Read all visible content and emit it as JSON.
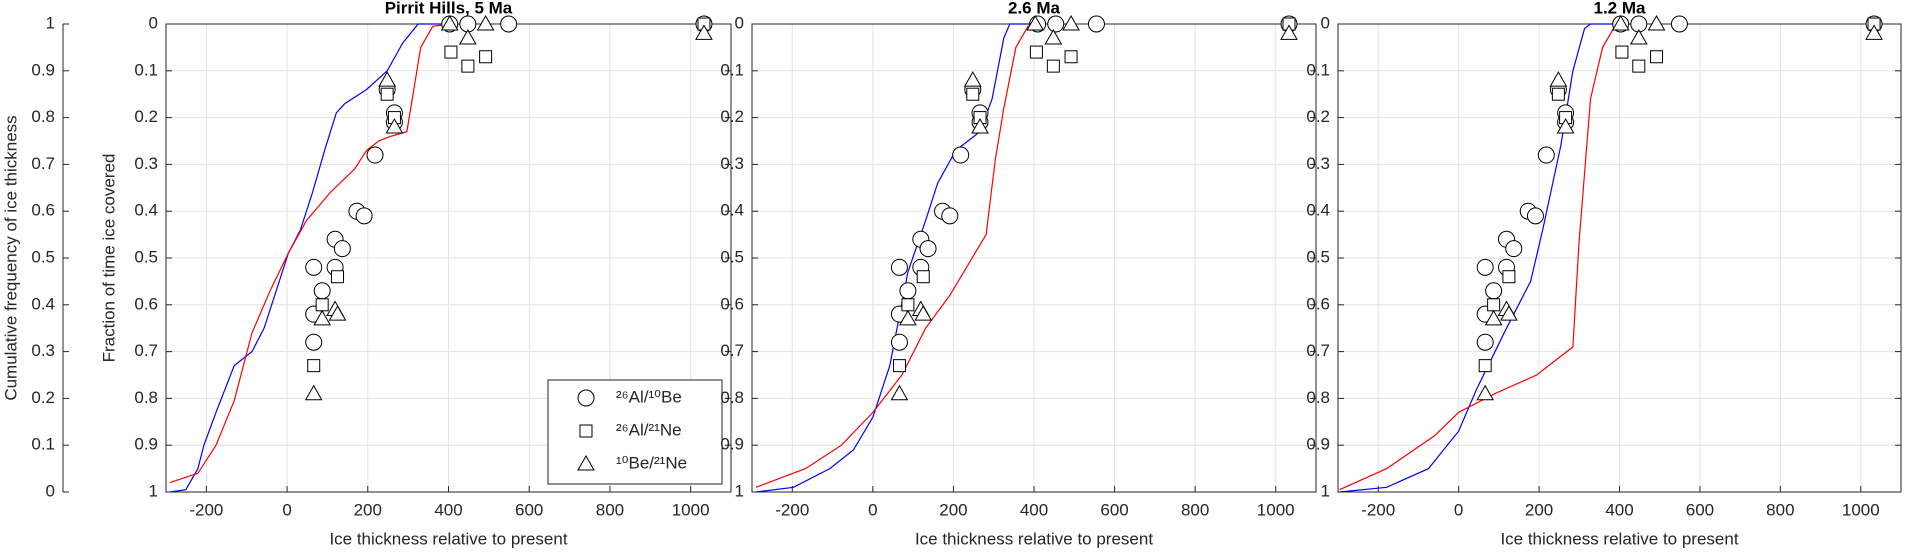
{
  "chart_data": [
    {
      "type": "scatter",
      "title": "Pirrit Hills, 5 Ma",
      "xlabel": "Ice thickness relative to present",
      "ylabel": "Fraction of time ice covered",
      "y2label": "Cumulative frequency of ice thickness",
      "xlim": [
        -300,
        1100
      ],
      "xticks": [
        -200,
        0,
        200,
        400,
        600,
        800,
        1000
      ],
      "ylim": [
        0,
        1
      ],
      "yticks": [
        0,
        0.1,
        0.2,
        0.3,
        0.4,
        0.5,
        0.6,
        0.7,
        0.8,
        0.9,
        1
      ],
      "y_reversed": true,
      "y2lim": [
        0,
        1
      ],
      "y2ticks": [
        0,
        0.1,
        0.2,
        0.3,
        0.4,
        0.5,
        0.6,
        0.7,
        0.8,
        0.9,
        1
      ],
      "grid": true,
      "legend": "lower right",
      "series": [
        {
          "name": "²⁶Al/¹⁰Be",
          "marker": "circle",
          "color": "#000000",
          "x": [
            66,
            66,
            66,
            87,
            119,
            119,
            137,
            173,
            191,
            218,
            248,
            266,
            266,
            403,
            448,
            549,
            1033
          ],
          "values": [
            0.52,
            0.62,
            0.68,
            0.57,
            0.52,
            0.46,
            0.48,
            0.4,
            0.41,
            0.28,
            0.14,
            0.19,
            0.21,
            0,
            0,
            0,
            0
          ]
        },
        {
          "name": "²⁶Al/²¹Ne",
          "marker": "square",
          "color": "#000000",
          "x": [
            66,
            87,
            125,
            248,
            266,
            406,
            448,
            492,
            1033
          ],
          "values": [
            0.73,
            0.6,
            0.54,
            0.15,
            0.2,
            0.06,
            0.09,
            0.07,
            0
          ]
        },
        {
          "name": "¹⁰Be/²¹Ne",
          "marker": "triangle",
          "color": "#000000",
          "x": [
            66,
            87,
            119,
            125,
            248,
            266,
            403,
            448,
            492,
            1033
          ],
          "values": [
            0.79,
            0.63,
            0.61,
            0.62,
            0.12,
            0.22,
            0,
            0.03,
            0,
            0.02
          ]
        }
      ],
      "lines": [
        {
          "color": "#0000ff",
          "axis": "y2",
          "x": [
            -290,
            -251,
            -221,
            -206,
            -176,
            -131,
            -87,
            -57,
            -27,
            3,
            33,
            63,
            93,
            122,
            143,
            197,
            248,
            287,
            325,
            403
          ],
          "values": [
            0,
            0.005,
            0.05,
            0.1,
            0.17,
            0.27,
            0.3,
            0.35,
            0.43,
            0.51,
            0.56,
            0.64,
            0.73,
            0.81,
            0.83,
            0.86,
            0.9,
            0.96,
            1,
            1
          ]
        },
        {
          "color": "#ff0000",
          "axis": "y2",
          "x": [
            -290,
            -221,
            -176,
            -131,
            -87,
            -42,
            3,
            48,
            107,
            167,
            197,
            227,
            257,
            297,
            331,
            361,
            403
          ],
          "values": [
            0.02,
            0.04,
            0.1,
            0.195,
            0.34,
            0.43,
            0.51,
            0.58,
            0.64,
            0.69,
            0.73,
            0.75,
            0.76,
            0.77,
            0.95,
            0.995,
            1
          ]
        }
      ]
    },
    {
      "type": "scatter",
      "title": "2.6 Ma",
      "xlabel": "Ice thickness relative to present",
      "xlim": [
        -300,
        1100
      ],
      "xticks": [
        -200,
        0,
        200,
        400,
        600,
        800,
        1000
      ],
      "ylim": [
        0,
        1
      ],
      "yticks": [
        0,
        0.1,
        0.2,
        0.3,
        0.4,
        0.5,
        0.6,
        0.7,
        0.8,
        0.9,
        1
      ],
      "y_reversed": true,
      "y2lim": [
        0,
        1
      ],
      "grid": true,
      "series": [
        {
          "marker": "circle",
          "color": "#000000",
          "x": [
            66,
            66,
            66,
            87,
            119,
            119,
            137,
            173,
            191,
            218,
            248,
            266,
            266,
            409,
            454,
            555,
            1033
          ],
          "values": [
            0.52,
            0.62,
            0.68,
            0.57,
            0.52,
            0.46,
            0.48,
            0.4,
            0.41,
            0.28,
            0.14,
            0.19,
            0.21,
            0,
            0,
            0,
            0
          ]
        },
        {
          "marker": "square",
          "color": "#000000",
          "x": [
            66,
            87,
            125,
            248,
            266,
            406,
            448,
            492,
            1033
          ],
          "values": [
            0.73,
            0.6,
            0.54,
            0.15,
            0.2,
            0.06,
            0.09,
            0.07,
            0
          ]
        },
        {
          "marker": "triangle",
          "color": "#000000",
          "x": [
            66,
            87,
            119,
            125,
            248,
            266,
            403,
            448,
            492,
            1033
          ],
          "values": [
            0.79,
            0.63,
            0.61,
            0.62,
            0.12,
            0.22,
            0,
            0.03,
            0,
            0.02
          ]
        }
      ],
      "lines": [
        {
          "color": "#0000ff",
          "axis": "y2",
          "x": [
            -290,
            -197,
            -107,
            -48,
            0,
            42,
            87,
            131,
            161,
            206,
            266,
            296,
            325,
            340,
            400
          ],
          "values": [
            0,
            0.01,
            0.05,
            0.09,
            0.16,
            0.27,
            0.47,
            0.58,
            0.66,
            0.73,
            0.77,
            0.84,
            0.97,
            1,
            1
          ]
        },
        {
          "color": "#ff0000",
          "axis": "y2",
          "x": [
            -290,
            -167,
            -78,
            0,
            72,
            131,
            191,
            281,
            304,
            325,
            355,
            385,
            415
          ],
          "values": [
            0.01,
            0.05,
            0.1,
            0.17,
            0.25,
            0.35,
            0.42,
            0.55,
            0.71,
            0.82,
            0.95,
            0.995,
            1
          ]
        }
      ]
    },
    {
      "type": "scatter",
      "title": "1.2 Ma",
      "xlabel": "Ice thickness relative to present",
      "xlim": [
        -300,
        1100
      ],
      "xticks": [
        -200,
        0,
        200,
        400,
        600,
        800,
        1000
      ],
      "ylim": [
        0,
        1
      ],
      "yticks": [
        0,
        0.1,
        0.2,
        0.3,
        0.4,
        0.5,
        0.6,
        0.7,
        0.8,
        0.9,
        1
      ],
      "y_reversed": true,
      "y2lim": [
        0,
        1
      ],
      "grid": true,
      "series": [
        {
          "marker": "circle",
          "color": "#000000",
          "x": [
            66,
            66,
            66,
            87,
            119,
            119,
            137,
            173,
            191,
            218,
            248,
            266,
            266,
            403,
            448,
            549,
            1033
          ],
          "values": [
            0.52,
            0.62,
            0.68,
            0.57,
            0.52,
            0.46,
            0.48,
            0.4,
            0.41,
            0.28,
            0.14,
            0.19,
            0.21,
            0,
            0,
            0,
            0
          ]
        },
        {
          "marker": "square",
          "color": "#000000",
          "x": [
            66,
            87,
            125,
            248,
            266,
            406,
            448,
            492,
            1033
          ],
          "values": [
            0.73,
            0.6,
            0.54,
            0.15,
            0.2,
            0.06,
            0.09,
            0.07,
            0
          ]
        },
        {
          "marker": "triangle",
          "color": "#000000",
          "x": [
            66,
            87,
            119,
            125,
            248,
            266,
            403,
            448,
            492,
            1033
          ],
          "values": [
            0.79,
            0.63,
            0.61,
            0.62,
            0.12,
            0.22,
            0,
            0.03,
            0,
            0.02
          ]
        }
      ],
      "lines": [
        {
          "color": "#0000ff",
          "axis": "y2",
          "x": [
            -296,
            -179,
            -75,
            0,
            45,
            119,
            179,
            209,
            254,
            284,
            313,
            328,
            403
          ],
          "values": [
            0,
            0.01,
            0.05,
            0.13,
            0.22,
            0.35,
            0.45,
            0.56,
            0.74,
            0.9,
            0.99,
            1,
            1
          ]
        },
        {
          "color": "#ff0000",
          "axis": "y2",
          "x": [
            -296,
            -179,
            -60,
            0,
            90,
            194,
            284,
            299,
            328,
            358,
            388,
            418
          ],
          "values": [
            0.005,
            0.05,
            0.12,
            0.17,
            0.21,
            0.25,
            0.31,
            0.53,
            0.84,
            0.95,
            0.995,
            1
          ]
        }
      ]
    }
  ]
}
